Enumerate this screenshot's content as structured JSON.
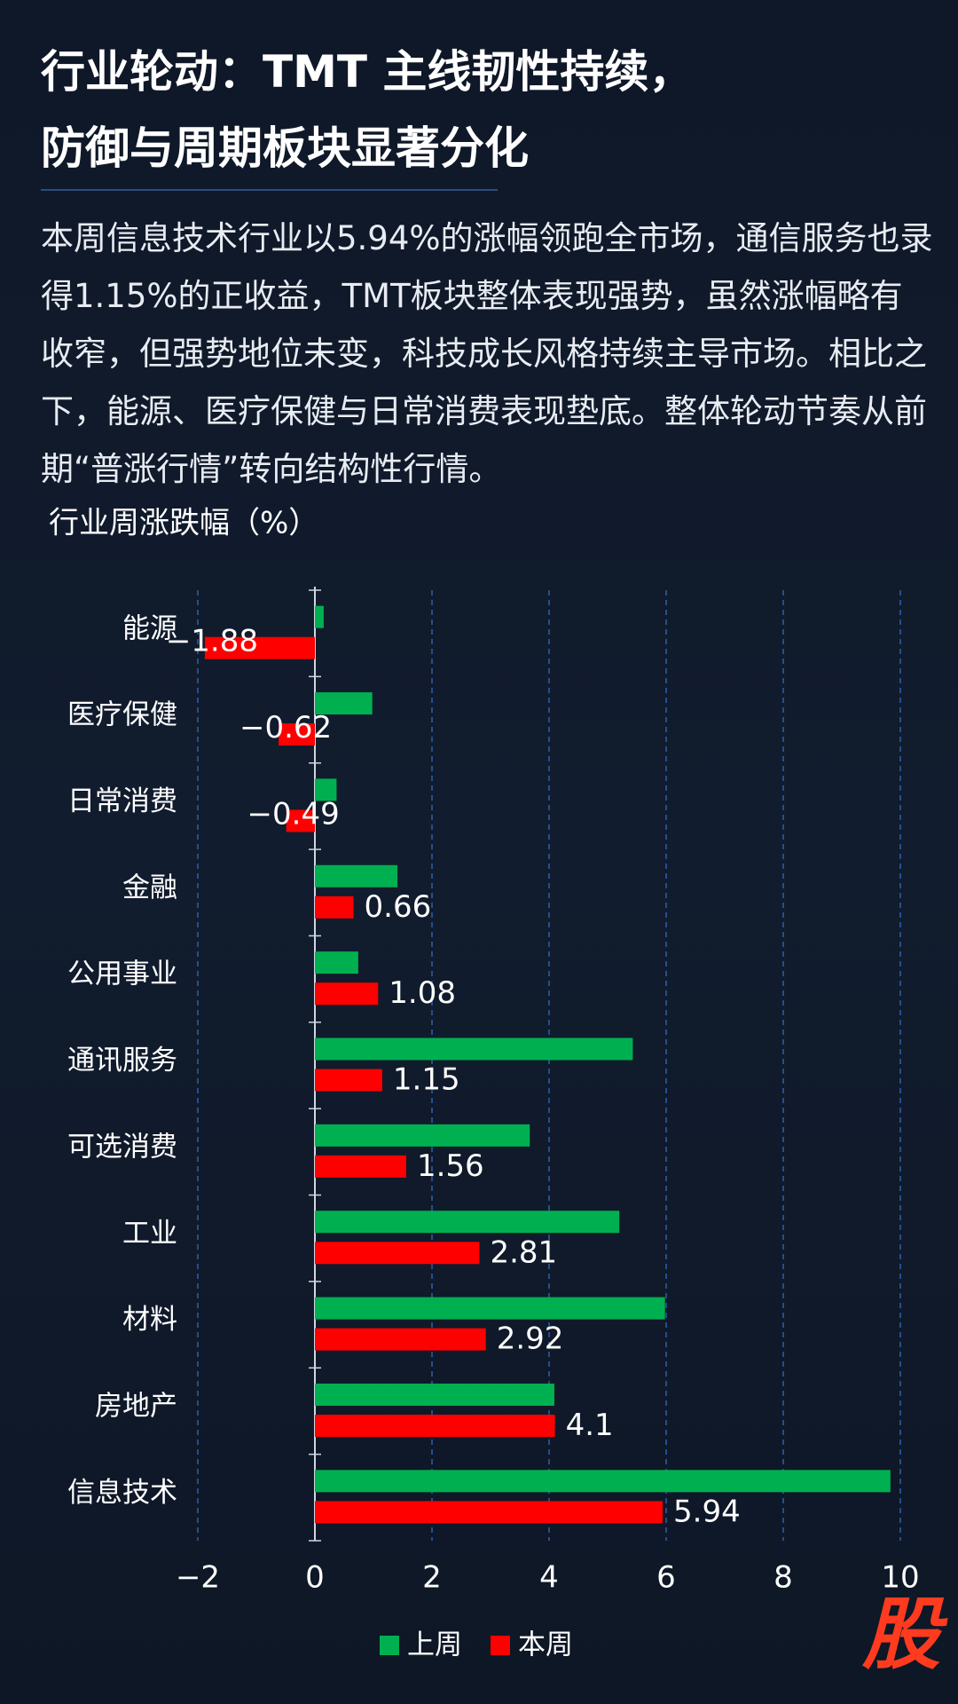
{
  "header": {
    "title_lines": [
      "行业轮动：TMT 主线韧性持续，",
      "防御与周期板块显著分化"
    ],
    "description": "本周信息技术行业以5.94%的涨幅领跑全市场，通信服务也录得1.15%的正收益，TMT板块整体表现强势，虽然涨幅略有收窄，但强势地位未变，科技成长风格持续主导市场。相比之下，能源、医疗保健与日常消费表现垫底。整体轮动节奏从前期“普涨行情”转向结构性行情。",
    "watermark": "股"
  },
  "chart_data": {
    "type": "hbar",
    "title": "行业周涨跌幅（%）",
    "categories": [
      "能源",
      "医疗保健",
      "日常消费",
      "金融",
      "公用事业",
      "通讯服务",
      "可选消费",
      "工业",
      "材料",
      "房地产",
      "信息技术"
    ],
    "series": [
      {
        "name": "上周",
        "color": "#00b050",
        "values": [
          0.15,
          0.98,
          0.37,
          1.41,
          0.74,
          5.43,
          3.67,
          5.2,
          5.98,
          4.09,
          9.83
        ]
      },
      {
        "name": "本周",
        "color": "#ff0000",
        "values": [
          -1.88,
          -0.62,
          -0.49,
          0.66,
          1.08,
          1.15,
          1.56,
          2.81,
          2.92,
          4.1,
          5.94
        ],
        "value_labels": [
          "−1.88",
          "−0.62",
          "−0.49",
          "0.66",
          "1.08",
          "1.15",
          "1.56",
          "2.81",
          "2.92",
          "4.1",
          "5.94"
        ]
      }
    ],
    "xlim": [
      -2,
      10
    ],
    "xticks": [
      {
        "value": -2,
        "label": "−2"
      },
      0,
      2,
      4,
      6,
      8,
      10
    ],
    "grid": true,
    "legend": "bottom"
  }
}
